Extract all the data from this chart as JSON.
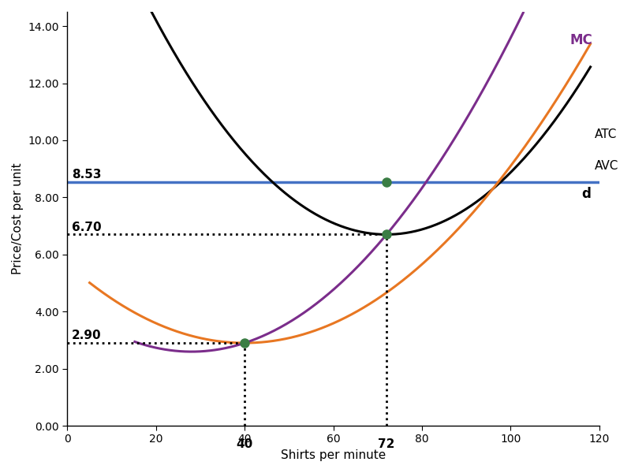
{
  "title": "",
  "xlabel": "Shirts per minute",
  "ylabel": "Price/Cost per unit",
  "xlim": [
    0,
    120
  ],
  "ylim": [
    0.0,
    14.5
  ],
  "yticks": [
    0.0,
    2.0,
    4.0,
    6.0,
    8.0,
    10.0,
    12.0,
    14.0
  ],
  "xticks": [
    0,
    20,
    40,
    60,
    80,
    100,
    120
  ],
  "demand_price": 8.53,
  "demand_color": "#4472C4",
  "atc_color": "#000000",
  "avc_color": "#E87722",
  "mc_color": "#7B2D8B",
  "dot_color": "#3A7D44",
  "key_x1": 40,
  "key_x2": 72,
  "key_y_avc_min": 2.9,
  "key_y_atc_min": 6.7,
  "label_853": "8.53",
  "label_670": "6.70",
  "label_290": "2.90",
  "label_40": "40",
  "label_72": "72",
  "label_MC": "MC",
  "label_ATC": "ATC",
  "label_AVC": "AVC",
  "label_d": "d",
  "background_color": "#ffffff"
}
